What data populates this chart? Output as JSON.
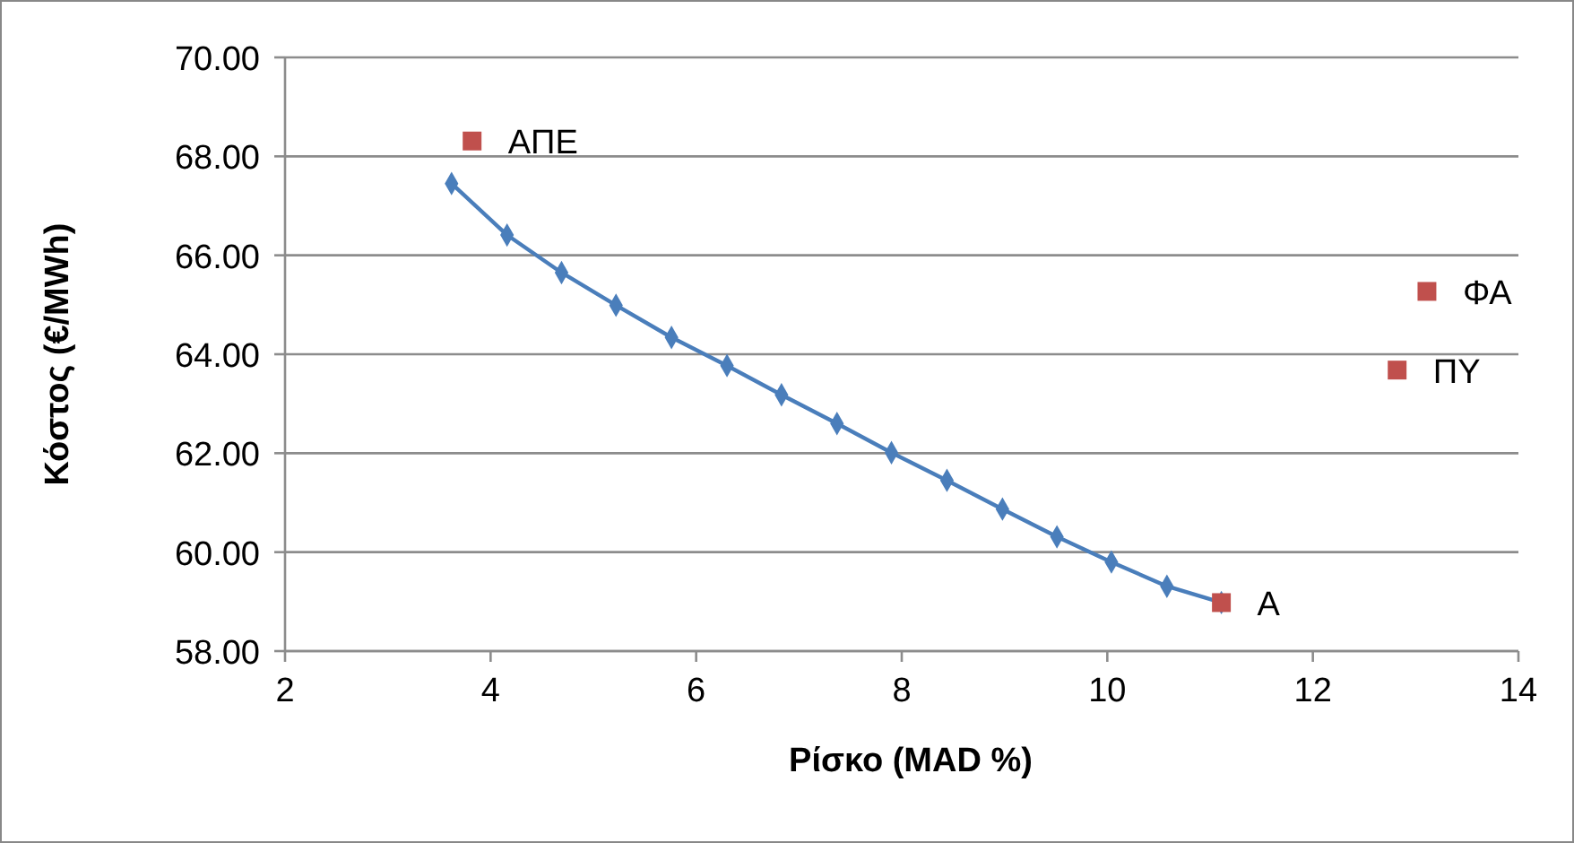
{
  "chart_data": {
    "type": "scatter",
    "xlabel": "Ρίσκο (MAD %)",
    "ylabel": "Κόστος (€/MWh)",
    "xlim": [
      2,
      14
    ],
    "xticks": [
      2,
      4,
      6,
      8,
      10,
      12,
      14
    ],
    "ylim": [
      58,
      70
    ],
    "yticks": [
      {
        "value": 58,
        "label": "58.00"
      },
      {
        "value": 60,
        "label": "60.00"
      },
      {
        "value": 62,
        "label": "62.00"
      },
      {
        "value": 64,
        "label": "64.00"
      },
      {
        "value": 66,
        "label": "66.00"
      },
      {
        "value": 68,
        "label": "68.00"
      },
      {
        "value": 70,
        "label": "70.00"
      }
    ],
    "grid": "y",
    "series": [
      {
        "type": "line",
        "color": "#4a7ebb",
        "marker": "diamond",
        "line_style": "solid",
        "x": [
          3.62,
          4.16,
          4.69,
          5.22,
          5.76,
          6.3,
          6.83,
          7.37,
          7.9,
          8.44,
          8.98,
          9.51,
          10.04,
          10.58,
          11.11
        ],
        "values": [
          67.45,
          66.41,
          65.65,
          64.99,
          64.34,
          63.77,
          63.18,
          62.6,
          62.01,
          61.45,
          60.87,
          60.31,
          59.8,
          59.31,
          58.98
        ]
      },
      {
        "name": "ΑΠΕ",
        "color": "#c0504d",
        "marker": "square",
        "x": [
          3.82
        ],
        "values": [
          68.31
        ]
      },
      {
        "name": "ΦΑ",
        "color": "#c0504d",
        "marker": "square",
        "x": [
          13.11
        ],
        "values": [
          65.27
        ]
      },
      {
        "name": "ΠΥ",
        "color": "#c0504d",
        "marker": "square",
        "x": [
          12.82
        ],
        "values": [
          63.68
        ]
      },
      {
        "name": "Α",
        "color": "#c0504d",
        "marker": "square",
        "x": [
          11.11
        ],
        "values": [
          58.98
        ]
      }
    ]
  }
}
